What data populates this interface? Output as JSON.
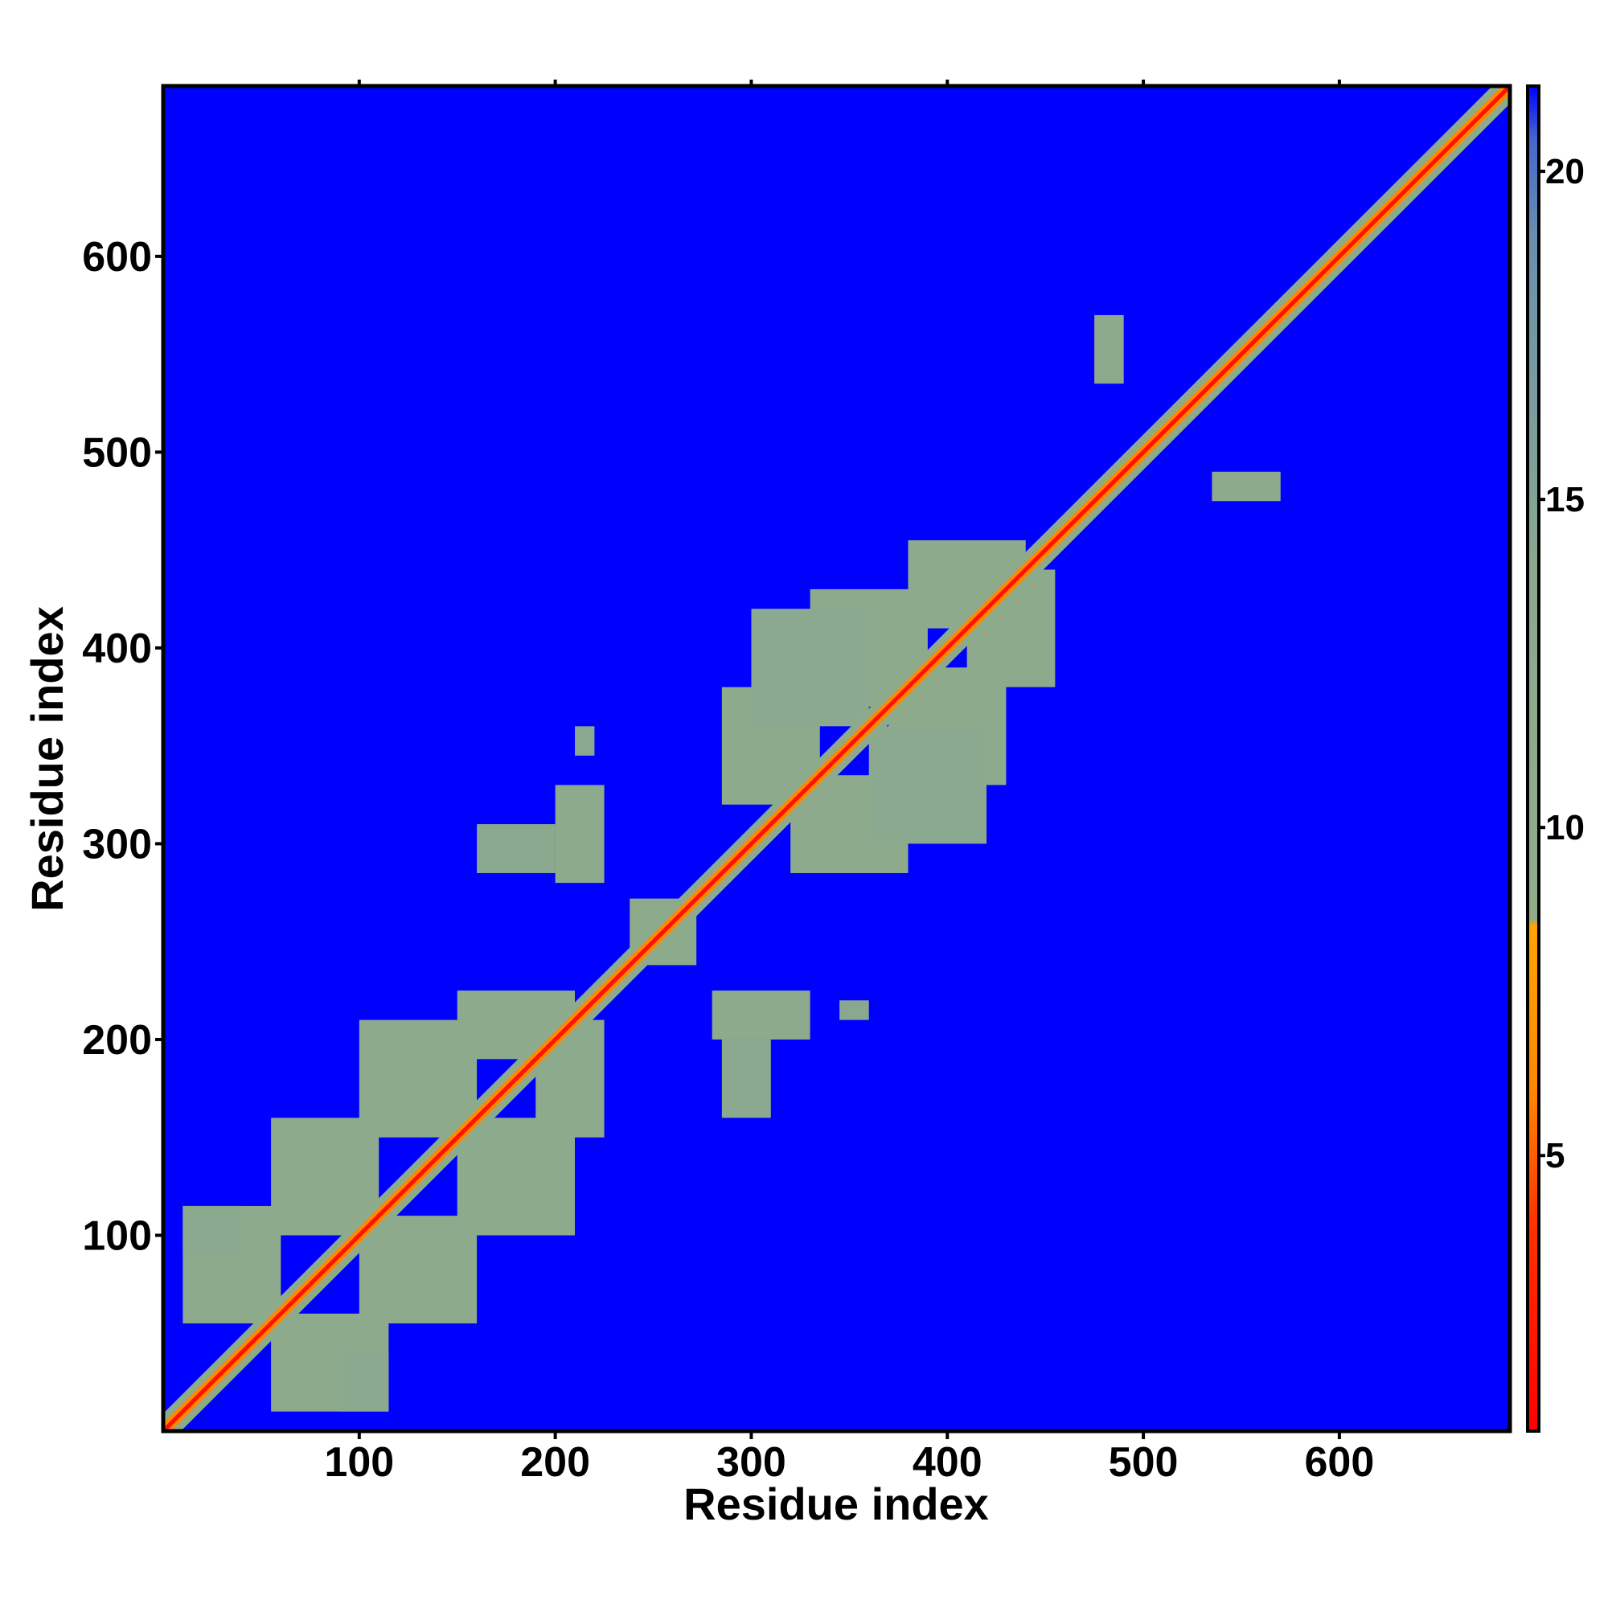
{
  "chart_data": {
    "type": "heatmap",
    "xlabel": "Residue index",
    "ylabel": "Residue index",
    "xlim": [
      0,
      687
    ],
    "ylim": [
      0,
      687
    ],
    "xticks": [
      100,
      200,
      300,
      400,
      500,
      600
    ],
    "yticks": [
      100,
      200,
      300,
      400,
      500,
      600
    ],
    "zlim": [
      0.8,
      21.3
    ],
    "zticks": [
      5,
      10,
      15,
      20
    ],
    "colorscale": [
      [
        0.8,
        "#ff0000"
      ],
      [
        4,
        "#ff3300"
      ],
      [
        6,
        "#ff8800"
      ],
      [
        8.5,
        "#ffa500"
      ],
      [
        8.6,
        "#90ad88"
      ],
      [
        14,
        "#8aa88f"
      ],
      [
        19,
        "#6a8fae"
      ],
      [
        20.5,
        "#4466cc"
      ],
      [
        21.3,
        "#0000ff"
      ]
    ],
    "background_value": 21.3,
    "symmetric": true,
    "diagonal_bands": [
      {
        "offset": 9,
        "value": 11
      },
      {
        "offset": 4,
        "value": 6
      },
      {
        "offset": 1.5,
        "value": 2
      }
    ],
    "cells": [
      {
        "x": [
          10,
          60
        ],
        "y": [
          55,
          115
        ],
        "value": 11.5
      },
      {
        "x": [
          55,
          110
        ],
        "y": [
          100,
          160
        ],
        "value": 11.5
      },
      {
        "x": [
          100,
          160
        ],
        "y": [
          150,
          210
        ],
        "value": 11.5
      },
      {
        "x": [
          150,
          210
        ],
        "y": [
          190,
          225
        ],
        "value": 11.5
      },
      {
        "x": [
          10,
          40
        ],
        "y": [
          90,
          115
        ],
        "value": 13
      },
      {
        "x": [
          160,
          200
        ],
        "y": [
          285,
          310
        ],
        "value": 13
      },
      {
        "x": [
          200,
          225
        ],
        "y": [
          280,
          330
        ],
        "value": 11.5
      },
      {
        "x": [
          210,
          220
        ],
        "y": [
          345,
          360
        ],
        "value": 14
      },
      {
        "x": [
          238,
          270
        ],
        "y": [
          240,
          272
        ],
        "value": 11
      },
      {
        "x": [
          285,
          335
        ],
        "y": [
          320,
          380
        ],
        "value": 11.5
      },
      {
        "x": [
          330,
          390
        ],
        "y": [
          370,
          430
        ],
        "value": 11.5
      },
      {
        "x": [
          380,
          440
        ],
        "y": [
          410,
          455
        ],
        "value": 11.5
      },
      {
        "x": [
          300,
          360
        ],
        "y": [
          360,
          420
        ],
        "value": 13
      },
      {
        "x": [
          475,
          490
        ],
        "y": [
          535,
          570
        ],
        "value": 11.5
      }
    ]
  }
}
